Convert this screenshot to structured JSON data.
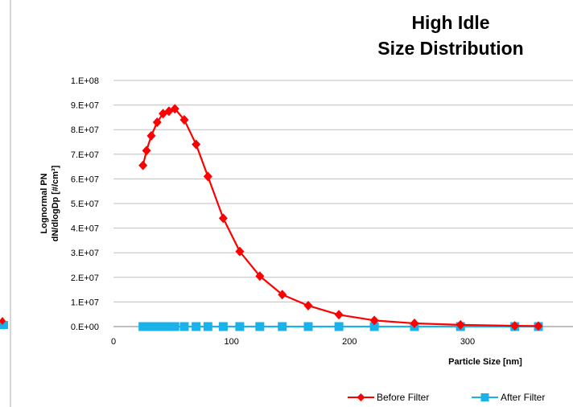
{
  "chart_data": {
    "type": "line",
    "title_line1": "High Idle",
    "title_line2": "Size Distribution",
    "xlabel": "Particle Size [nm]",
    "ylabel_line1": "Lognormal PN",
    "ylabel_line2": "dN/dlogDp [#/cm³]",
    "xlim": [
      0,
      360
    ],
    "ylim": [
      0,
      100000000
    ],
    "x_ticks": [
      0,
      100,
      200,
      300
    ],
    "x_tick_labels": [
      "0",
      "100",
      "200",
      "300"
    ],
    "y_ticks": [
      0,
      10000000,
      20000000,
      30000000,
      40000000,
      50000000,
      60000000,
      70000000,
      80000000,
      90000000,
      100000000
    ],
    "y_tick_labels": [
      "0.E+00",
      "1.E+07",
      "2.E+07",
      "3.E+07",
      "4.E+07",
      "5.E+07",
      "6.E+07",
      "7.E+07",
      "8.E+07",
      "9.E+07",
      "1.E+08"
    ],
    "grid": "horizontal",
    "legend_position": "bottom-right",
    "series": [
      {
        "name": "Before Filter",
        "color": "#ff0000",
        "marker": "diamond",
        "x": [
          25,
          28,
          32,
          37,
          42,
          47,
          52,
          60,
          70,
          80,
          93,
          107,
          124,
          143,
          165,
          191,
          221,
          255,
          294,
          340,
          360
        ],
        "y": [
          65500000,
          71500000,
          77500000,
          83000000,
          86500000,
          87500000,
          88500000,
          84000000,
          74000000,
          61000000,
          44000000,
          30500000,
          20500000,
          13000000,
          8500000,
          4800000,
          2500000,
          1300000,
          700000,
          300000,
          200000
        ]
      },
      {
        "name": "After Filter",
        "color": "#1ab2e8",
        "marker": "square",
        "x": [
          25,
          28,
          32,
          37,
          42,
          47,
          52,
          60,
          70,
          80,
          93,
          107,
          124,
          143,
          165,
          191,
          221,
          255,
          294,
          340,
          360
        ],
        "y": [
          0,
          0,
          0,
          0,
          0,
          0,
          0,
          0,
          0,
          0,
          0,
          0,
          0,
          0,
          0,
          0,
          0,
          0,
          0,
          0,
          0
        ]
      }
    ]
  }
}
